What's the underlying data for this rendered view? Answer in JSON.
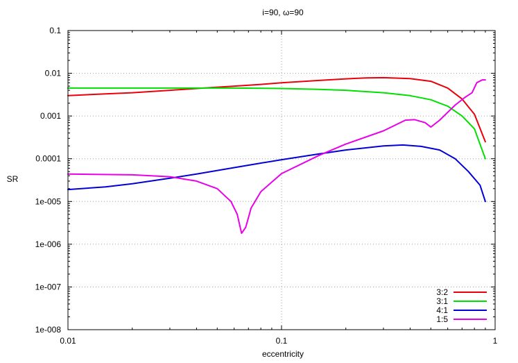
{
  "chart_data": {
    "type": "line",
    "title": "i=90,  ω=90",
    "xlabel": "eccentricity",
    "ylabel": "SR",
    "xscale": "log",
    "yscale": "log",
    "xlim": [
      0.01,
      1
    ],
    "ylim": [
      1e-08,
      0.1
    ],
    "xticks": [
      {
        "value": 0.01,
        "label": "0.01"
      },
      {
        "value": 0.1,
        "label": "0.1"
      },
      {
        "value": 1,
        "label": "1"
      }
    ],
    "yticks": [
      {
        "value": 1e-08,
        "label": "1e-008"
      },
      {
        "value": 1e-07,
        "label": "1e-007"
      },
      {
        "value": 1e-06,
        "label": "1e-006"
      },
      {
        "value": 1e-05,
        "label": "1e-005"
      },
      {
        "value": 0.0001,
        "label": "0.0001"
      },
      {
        "value": 0.001,
        "label": "0.001"
      },
      {
        "value": 0.01,
        "label": "0.01"
      },
      {
        "value": 0.1,
        "label": "0.1"
      }
    ],
    "grid": true,
    "legend_position": "bottom-right",
    "series": [
      {
        "name": "3:2",
        "color": "#e8000b",
        "points": [
          [
            0.01,
            0.003
          ],
          [
            0.015,
            0.0033
          ],
          [
            0.02,
            0.0035
          ],
          [
            0.03,
            0.004
          ],
          [
            0.04,
            0.0044
          ],
          [
            0.06,
            0.005
          ],
          [
            0.08,
            0.0055
          ],
          [
            0.1,
            0.006
          ],
          [
            0.15,
            0.0068
          ],
          [
            0.2,
            0.0074
          ],
          [
            0.25,
            0.0078
          ],
          [
            0.3,
            0.0079
          ],
          [
            0.4,
            0.0075
          ],
          [
            0.5,
            0.0065
          ],
          [
            0.6,
            0.0045
          ],
          [
            0.7,
            0.0025
          ],
          [
            0.8,
            0.0011
          ],
          [
            0.9,
            0.00025
          ]
        ]
      },
      {
        "name": "3:1",
        "color": "#00e000",
        "points": [
          [
            0.01,
            0.0045
          ],
          [
            0.03,
            0.0045
          ],
          [
            0.06,
            0.0045
          ],
          [
            0.1,
            0.0044
          ],
          [
            0.15,
            0.0042
          ],
          [
            0.2,
            0.004
          ],
          [
            0.3,
            0.0035
          ],
          [
            0.4,
            0.003
          ],
          [
            0.5,
            0.0024
          ],
          [
            0.6,
            0.0017
          ],
          [
            0.7,
            0.001
          ],
          [
            0.8,
            0.0005
          ],
          [
            0.9,
            0.0001
          ]
        ]
      },
      {
        "name": "4:1",
        "color": "#0000d8",
        "points": [
          [
            0.01,
            1.9e-05
          ],
          [
            0.015,
            2.2e-05
          ],
          [
            0.02,
            2.6e-05
          ],
          [
            0.03,
            3.5e-05
          ],
          [
            0.04,
            4.4e-05
          ],
          [
            0.06,
            6.2e-05
          ],
          [
            0.08,
            7.9e-05
          ],
          [
            0.1,
            9.5e-05
          ],
          [
            0.15,
            0.00013
          ],
          [
            0.2,
            0.00016
          ],
          [
            0.3,
            0.0002
          ],
          [
            0.37,
            0.00021
          ],
          [
            0.45,
            0.000195
          ],
          [
            0.55,
            0.00016
          ],
          [
            0.65,
            0.0001
          ],
          [
            0.75,
            5e-05
          ],
          [
            0.85,
            2.4e-05
          ],
          [
            0.9,
            1e-05
          ]
        ]
      },
      {
        "name": "1:5",
        "color": "#e800e8",
        "points": [
          [
            0.01,
            4.4e-05
          ],
          [
            0.02,
            4.2e-05
          ],
          [
            0.03,
            3.8e-05
          ],
          [
            0.04,
            3e-05
          ],
          [
            0.05,
            2e-05
          ],
          [
            0.058,
            1e-05
          ],
          [
            0.062,
            5e-06
          ],
          [
            0.065,
            1.8e-06
          ],
          [
            0.068,
            2.5e-06
          ],
          [
            0.072,
            7e-06
          ],
          [
            0.08,
            1.7e-05
          ],
          [
            0.1,
            4.5e-05
          ],
          [
            0.15,
            0.00012
          ],
          [
            0.2,
            0.00022
          ],
          [
            0.3,
            0.00045
          ],
          [
            0.38,
            0.0008
          ],
          [
            0.42,
            0.00082
          ],
          [
            0.47,
            0.0007
          ],
          [
            0.5,
            0.00055
          ],
          [
            0.55,
            0.0008
          ],
          [
            0.65,
            0.0018
          ],
          [
            0.72,
            0.0027
          ],
          [
            0.78,
            0.0035
          ],
          [
            0.82,
            0.006
          ],
          [
            0.87,
            0.007
          ],
          [
            0.9,
            0.007
          ]
        ]
      }
    ]
  }
}
